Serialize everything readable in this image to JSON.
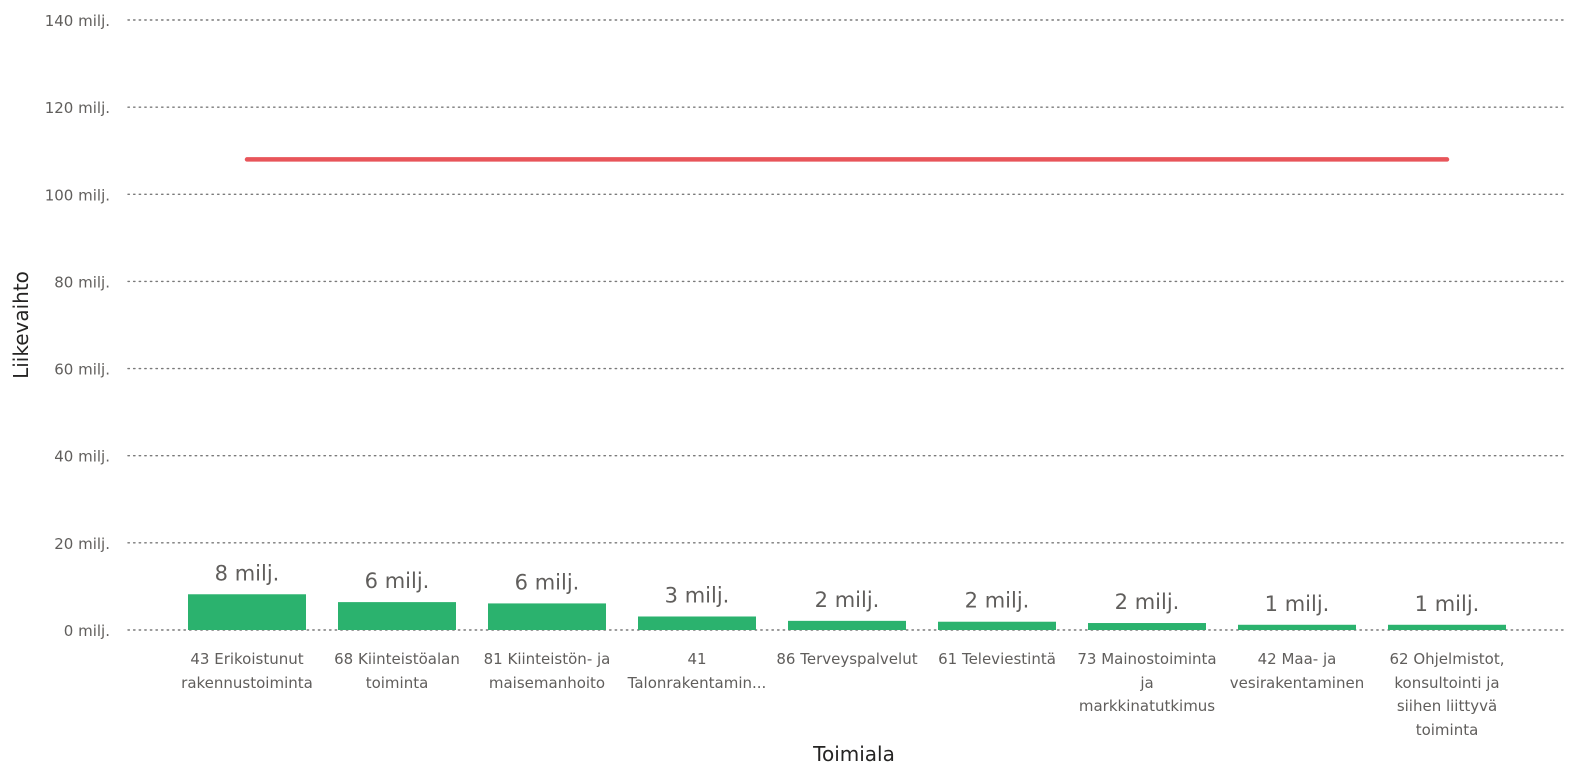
{
  "chart_data": {
    "type": "bar",
    "xlabel": "Toimiala",
    "ylabel": "Liikevaihto",
    "ylim": [
      0,
      140
    ],
    "y_unit_suffix": " milj.",
    "y_ticks": [
      "0 milj.",
      "20 milj.",
      "40 milj.",
      "60 milj.",
      "80 milj.",
      "100 milj.",
      "120 milj.",
      "140 milj."
    ],
    "grid": true,
    "categories": [
      "43 Erikoistunut rakennustoiminta",
      "68 Kiinteistöalan toiminta",
      "81 Kiinteistön- ja maisemanhoito",
      "41 Talonrakentamin...",
      "86 Terveyspalvelut",
      "61 Televiestintä",
      "73 Mainostoiminta ja markkinatutkimus",
      "42 Maa- ja vesirakentaminen",
      "62 Ohjelmistot, konsultointi ja siihen liittyvä toiminta"
    ],
    "values": [
      8.2,
      6.4,
      6.1,
      3.1,
      2.1,
      1.9,
      1.6,
      1.2,
      1.2
    ],
    "data_labels": [
      "8 milj.",
      "6 milj.",
      "6 milj.",
      "3 milj.",
      "2 milj.",
      "2 milj.",
      "2 milj.",
      "1 milj.",
      "1 milj."
    ],
    "reference_line": {
      "value": 108
    },
    "colors": {
      "bar": "#2bb26e",
      "reference_line": "#e8555a",
      "grid": "#7a7a7a"
    }
  }
}
